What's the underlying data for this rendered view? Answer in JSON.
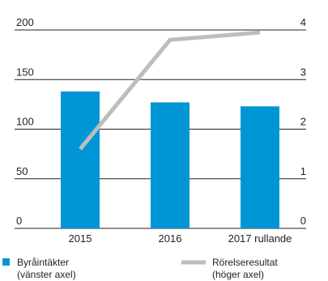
{
  "chart_data": {
    "type": "bar",
    "categories": [
      "2015",
      "2016",
      "2017 rullande"
    ],
    "series": [
      {
        "name": "Byråintäkter",
        "axis": "left",
        "kind": "bar",
        "values": [
          138,
          127,
          123
        ],
        "color": "#0096d6"
      },
      {
        "name": "Rörelseresultat",
        "axis": "right",
        "kind": "line",
        "values": [
          1.6,
          3.8,
          3.95
        ],
        "color": "#bdbdbd"
      }
    ],
    "y_left": {
      "ylim": [
        0,
        200
      ],
      "ticks": [
        "0",
        "50",
        "100",
        "150",
        "200"
      ]
    },
    "y_right": {
      "ylim": [
        0,
        4
      ],
      "ticks": [
        "0",
        "1",
        "2",
        "3",
        "4"
      ]
    },
    "grid": true,
    "legend": [
      {
        "label": "Byråintäkter",
        "sublabel": "(vänster axel)",
        "marker": "square",
        "color": "#0096d6"
      },
      {
        "label": "Rörelseresultat",
        "sublabel": "(höger axel)",
        "marker": "line",
        "color": "#bdbdbd"
      }
    ],
    "legend_position": "bottom"
  }
}
